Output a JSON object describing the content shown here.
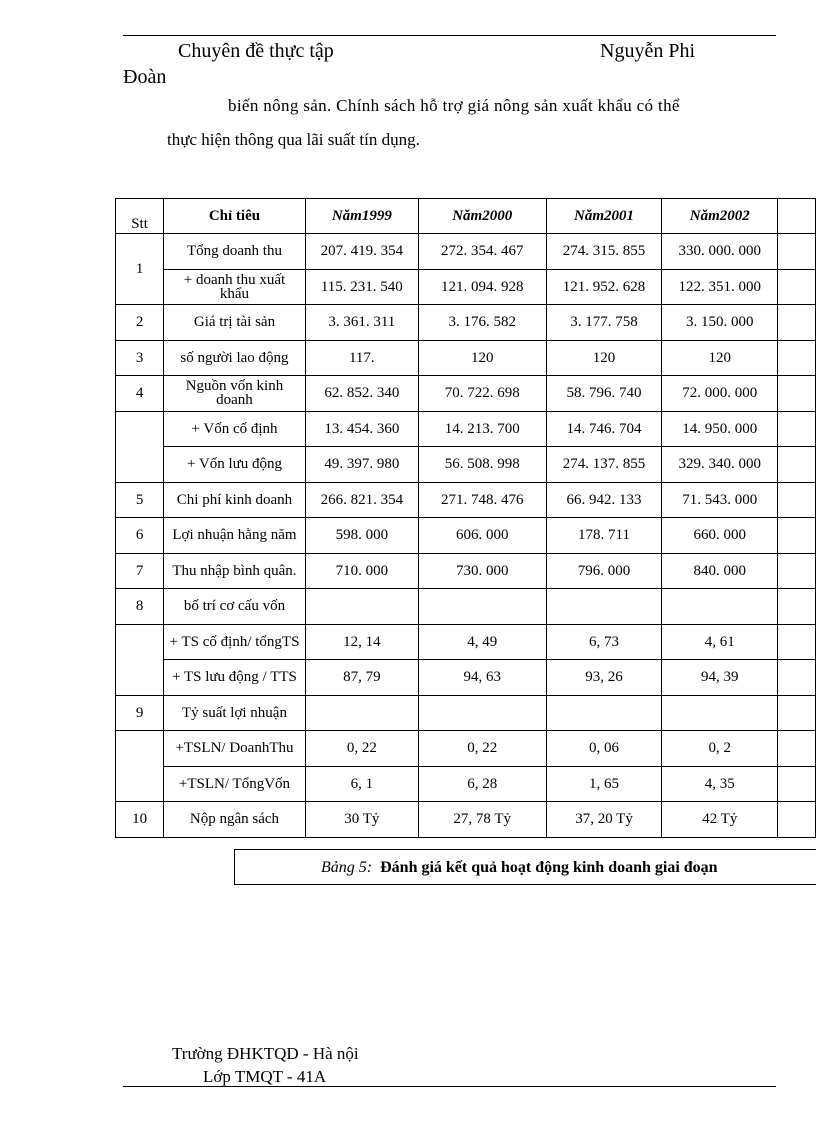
{
  "header": {
    "left": "Chuyên đề thực tập",
    "right": "Nguyễn Phi",
    "continuation": "Đoàn"
  },
  "paragraph": [
    "biến nông sản. Chính sách hỗ trợ giá nông sản xuất khẩu có thể",
    "thực hiện thông qua lãi suất tín dụng."
  ],
  "table": {
    "columns": [
      "Stt",
      "Chỉ tiêu",
      "Năm1999",
      "Năm2000",
      "Năm2001",
      "Năm2002"
    ],
    "groups": [
      {
        "stt": "1",
        "rows": [
          [
            "Tổng doanh thu",
            "207. 419. 354",
            "272. 354. 467",
            "274. 315. 855",
            "330. 000. 000"
          ],
          [
            "+ doanh thu xuất khẩu",
            "115. 231. 540",
            "121. 094. 928",
            "121. 952. 628",
            "122. 351. 000"
          ]
        ]
      },
      {
        "stt": "2",
        "rows": [
          [
            "Giá trị tài sản",
            "3. 361. 311",
            "3. 176. 582",
            "3. 177. 758",
            "3. 150. 000"
          ]
        ]
      },
      {
        "stt": "3",
        "rows": [
          [
            "số người lao động",
            "117.",
            "120",
            "120",
            "120"
          ]
        ]
      },
      {
        "stt": "4",
        "rows": [
          [
            "Nguồn vốn kinh doanh",
            "62. 852. 340",
            "70. 722. 698",
            "58. 796. 740",
            "72. 000. 000"
          ]
        ]
      },
      {
        "rows": [
          [
            "+ Vốn cố định",
            "13. 454. 360",
            "14. 213. 700",
            "14. 746. 704",
            "14. 950. 000"
          ],
          [
            "+ Vốn lưu động",
            "49. 397. 980",
            "56. 508. 998",
            "274. 137. 855",
            "329. 340. 000"
          ]
        ]
      },
      {
        "stt": "5",
        "rows": [
          [
            "Chi phí kinh doanh",
            "266. 821. 354",
            "271. 748. 476",
            "66. 942. 133",
            "71. 543. 000"
          ]
        ]
      },
      {
        "stt": "6",
        "rows": [
          [
            "Lợi nhuận hằng năm",
            "598. 000",
            "606. 000",
            "178. 711",
            "660. 000"
          ]
        ]
      },
      {
        "stt": "7",
        "rows": [
          [
            "Thu nhập bình quân.",
            "710. 000",
            "730. 000",
            "796. 000",
            "840. 000"
          ]
        ]
      },
      {
        "stt": "8",
        "rows": [
          [
            "bố trí cơ cấu vốn"
          ]
        ]
      },
      {
        "rows": [
          [
            "+ TS cố định/ tổngTS",
            "12, 14",
            "4, 49",
            "6, 73",
            "4, 61"
          ],
          [
            "+ TS lưu động / TTS",
            "87, 79",
            "94, 63",
            "93, 26",
            "94, 39"
          ]
        ]
      },
      {
        "stt": "9",
        "rows": [
          [
            "Tỷ suất lợi nhuận"
          ]
        ]
      },
      {
        "rows": [
          [
            "+TSLN/ DoanhThu",
            "0, 22",
            "0, 22",
            "0, 06",
            "0, 2"
          ],
          [
            "+TSLN/ TổngVốn",
            "6, 1",
            "6, 28",
            "1, 65",
            "4, 35"
          ]
        ]
      },
      {
        "stt": "10",
        "rows": [
          [
            "Nộp ngân sách",
            "30 Tỷ",
            "27, 78 Tỷ",
            "37, 20 Tỷ",
            "42 Tỷ"
          ]
        ]
      }
    ]
  },
  "caption": {
    "label": "Bảng 5:",
    "text": "Đánh giá kết quả hoạt động kinh doanh giai đoạn"
  },
  "footer": {
    "school": "Trường ĐHKTQD - Hà nội",
    "class": "Lớp TMQT - 41A"
  }
}
